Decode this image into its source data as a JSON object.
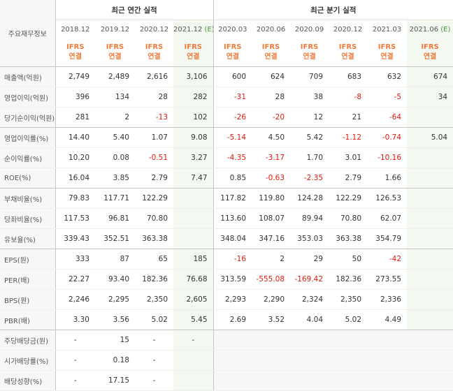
{
  "header": {
    "row_header": "주요재무정보",
    "annual_group": "최근 연간 실적",
    "quarter_group": "최근 분기 실적",
    "annual_periods": [
      "2018.12",
      "2019.12",
      "2020.12",
      "2021.12"
    ],
    "quarter_periods": [
      "2020.03",
      "2020.06",
      "2020.09",
      "2020.12",
      "2021.03",
      "2021.06"
    ],
    "estimate_mark": "(E)",
    "ifrs_line1": "IFRS",
    "ifrs_line2": "연결"
  },
  "rows": [
    {
      "label": "매출액(억원)",
      "values": [
        "2,749",
        "2,489",
        "2,616",
        "3,106",
        "600",
        "624",
        "709",
        "683",
        "632",
        "674"
      ]
    },
    {
      "label": "영업이익(억원)",
      "values": [
        "396",
        "134",
        "28",
        "282",
        "-31",
        "28",
        "38",
        "-8",
        "-5",
        "34"
      ]
    },
    {
      "label": "당기순이익(억원)",
      "values": [
        "281",
        "2",
        "-13",
        "102",
        "-26",
        "-20",
        "12",
        "21",
        "-64",
        ""
      ]
    },
    {
      "label": "영업이익률(%)",
      "values": [
        "14.40",
        "5.40",
        "1.07",
        "9.08",
        "-5.14",
        "4.50",
        "5.42",
        "-1.12",
        "-0.74",
        "5.04"
      ]
    },
    {
      "label": "순이익률(%)",
      "values": [
        "10.20",
        "0.08",
        "-0.51",
        "3.27",
        "-4.35",
        "-3.17",
        "1.70",
        "3.01",
        "-10.16",
        ""
      ]
    },
    {
      "label": "ROE(%)",
      "values": [
        "16.04",
        "3.85",
        "2.79",
        "7.47",
        "0.85",
        "-0.63",
        "-2.35",
        "2.79",
        "1.66",
        ""
      ]
    },
    {
      "label": "부채비율(%)",
      "values": [
        "79.83",
        "117.71",
        "122.29",
        "",
        "117.82",
        "119.80",
        "124.28",
        "122.29",
        "126.53",
        ""
      ]
    },
    {
      "label": "당좌비율(%)",
      "values": [
        "117.53",
        "96.81",
        "70.80",
        "",
        "113.60",
        "108.07",
        "89.94",
        "70.80",
        "62.07",
        ""
      ]
    },
    {
      "label": "유보율(%)",
      "values": [
        "339.43",
        "352.51",
        "363.38",
        "",
        "348.04",
        "347.16",
        "353.03",
        "363.38",
        "354.79",
        ""
      ]
    },
    {
      "label": "EPS(원)",
      "values": [
        "333",
        "87",
        "65",
        "185",
        "-16",
        "2",
        "29",
        "50",
        "-42",
        ""
      ]
    },
    {
      "label": "PER(배)",
      "values": [
        "22.27",
        "93.40",
        "182.36",
        "76.68",
        "313.59",
        "-555.08",
        "-169.42",
        "182.36",
        "273.55",
        ""
      ]
    },
    {
      "label": "BPS(원)",
      "values": [
        "2,246",
        "2,295",
        "2,350",
        "2,605",
        "2,293",
        "2,290",
        "2,324",
        "2,350",
        "2,336",
        ""
      ]
    },
    {
      "label": "PBR(배)",
      "values": [
        "3.30",
        "3.56",
        "5.02",
        "5.45",
        "2.69",
        "3.52",
        "4.04",
        "5.02",
        "4.49",
        ""
      ]
    },
    {
      "label": "주당배당금(원)",
      "values": [
        "-",
        "15",
        "-",
        "-",
        "",
        "",
        "",
        "",
        "",
        ""
      ]
    },
    {
      "label": "시가배당률(%)",
      "values": [
        "-",
        "0.18",
        "-",
        "",
        "",
        "",
        "",
        "",
        "",
        ""
      ]
    },
    {
      "label": "배당성향(%)",
      "values": [
        "-",
        "17.15",
        "-",
        "",
        "",
        "",
        "",
        "",
        "",
        ""
      ]
    }
  ],
  "colors": {
    "negative": "#e3180b",
    "ifrs": "#f07a3a",
    "estimate_bg": "#f3f8f0",
    "estimate_mark": "#4a9a2e"
  }
}
